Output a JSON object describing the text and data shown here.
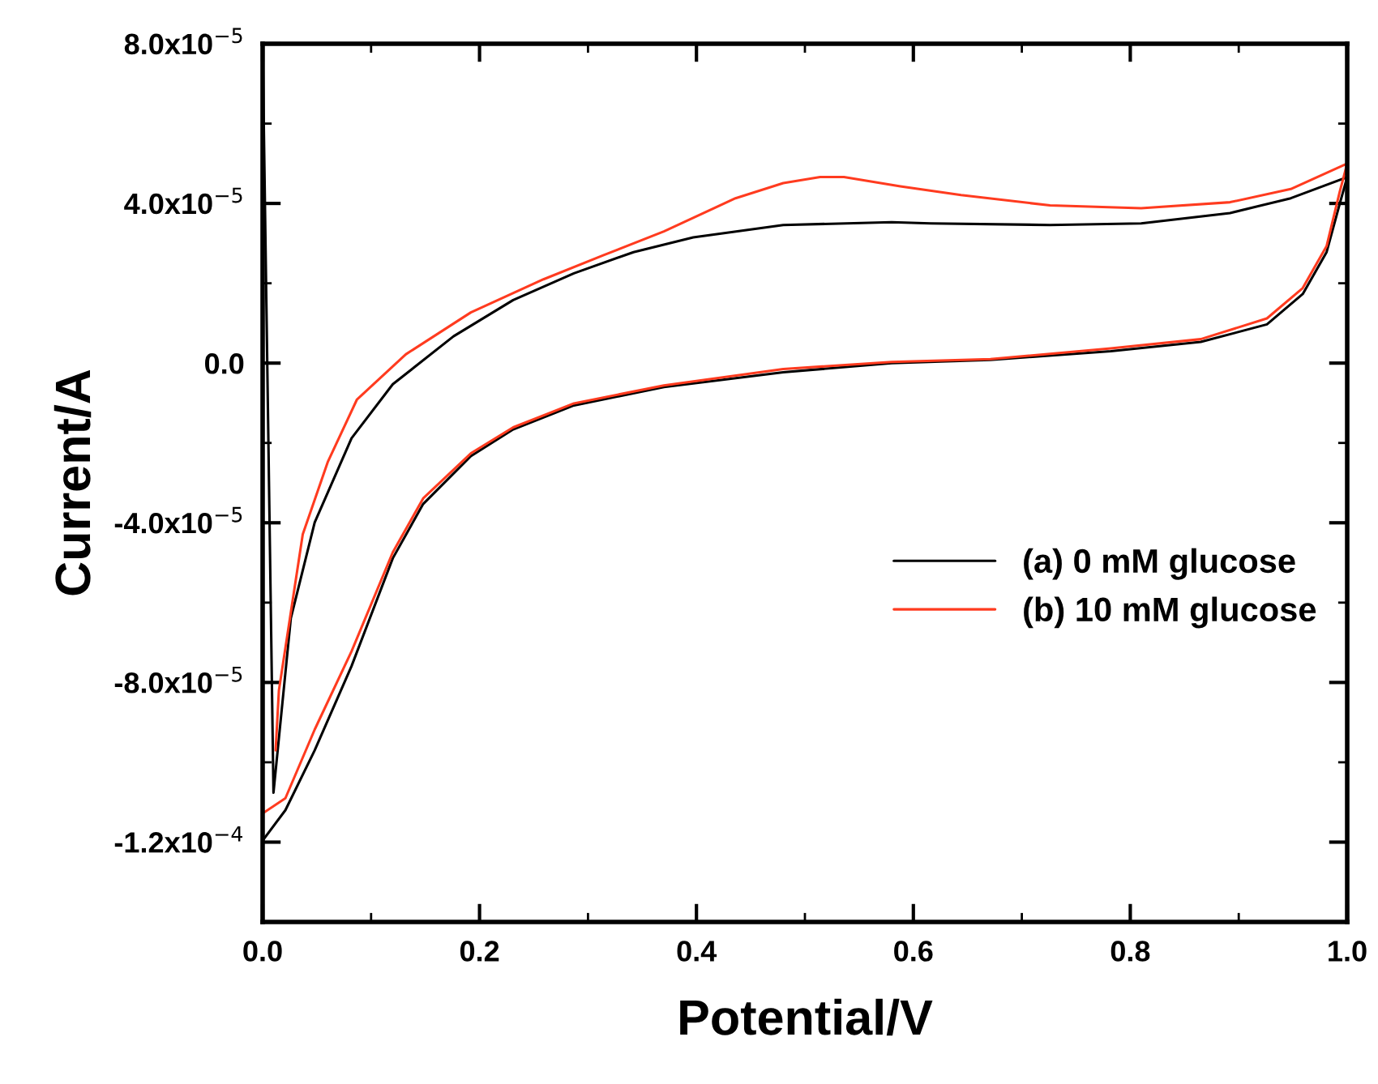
{
  "chart_data": {
    "type": "line",
    "xlabel": "Potential/V",
    "ylabel": "Current/A",
    "legend": "center right",
    "grid": false,
    "line_style": "solid",
    "marker": "none",
    "xlim": [
      0.0,
      1.0
    ],
    "ylim": [
      -0.00014,
      8e-05
    ],
    "xticks": [
      {
        "value": 0.0,
        "label": "0.0"
      },
      {
        "value": 0.2,
        "label": "0.2"
      },
      {
        "value": 0.4,
        "label": "0.4"
      },
      {
        "value": 0.6,
        "label": "0.6"
      },
      {
        "value": 0.8,
        "label": "0.8"
      },
      {
        "value": 1.0,
        "label": "1.0"
      }
    ],
    "yticks": [
      {
        "value": -0.00012,
        "label": "-1.2x10$^{−4}$"
      },
      {
        "value": -8e-05,
        "label": "-8.0x10$^{−5}$"
      },
      {
        "value": -4e-05,
        "label": "-4.0x10$^{−5}$"
      },
      {
        "value": 0,
        "label": "0.0"
      },
      {
        "value": 4e-05,
        "label": "4.0x10$^{−5}$"
      },
      {
        "value": 8e-05,
        "label": "8.0x10$^{−5}$"
      }
    ],
    "series": [
      {
        "name": "(a) 0 mM glucose",
        "color": "#000000",
        "x": [
          0.0,
          0.01,
          0.026,
          0.048,
          0.082,
          0.12,
          0.176,
          0.231,
          0.287,
          0.342,
          0.397,
          0.48,
          0.58,
          0.616,
          0.726,
          0.81,
          0.892,
          0.948,
          1.0,
          0.993,
          0.981,
          0.959,
          0.926,
          0.865,
          0.782,
          0.671,
          0.58,
          0.48,
          0.37,
          0.287,
          0.231,
          0.192,
          0.148,
          0.12,
          0.082,
          0.048,
          0.021,
          0.0
        ],
        "values": [
          8e-05,
          -0.0001076,
          -6.39e-05,
          -3.99e-05,
          -1.88e-05,
          -5.3e-06,
          6.7e-06,
          1.58e-05,
          2.25e-05,
          2.78e-05,
          3.15e-05,
          3.46e-05,
          3.53e-05,
          3.5e-05,
          3.46e-05,
          3.5e-05,
          3.76e-05,
          4.13e-05,
          4.66e-05,
          3.98e-05,
          2.78e-05,
          1.73e-05,
          9.7e-06,
          5.3e-06,
          3e-06,
          8e-07,
          0.0,
          -2.3e-06,
          -6e-06,
          -1.06e-05,
          -1.66e-05,
          -2.33e-05,
          -3.53e-05,
          -4.89e-05,
          -7.59e-05,
          -9.7e-05,
          -0.000112,
          -0.0001196
        ]
      },
      {
        "name": "(b) 10 mM glucose",
        "color": "#ff3b1f",
        "x": [
          0.012,
          0.015,
          0.037,
          0.06,
          0.087,
          0.132,
          0.192,
          0.259,
          0.314,
          0.37,
          0.436,
          0.48,
          0.514,
          0.536,
          0.588,
          0.644,
          0.726,
          0.81,
          0.892,
          0.948,
          1.0,
          0.993,
          0.981,
          0.959,
          0.926,
          0.865,
          0.782,
          0.671,
          0.58,
          0.48,
          0.37,
          0.287,
          0.231,
          0.192,
          0.148,
          0.12,
          0.082,
          0.048,
          0.021,
          0.0
        ],
        "values": [
          -9.7e-05,
          -8.2e-05,
          -4.29e-05,
          -2.48e-05,
          -9.1e-06,
          2.2e-06,
          1.27e-05,
          2.1e-05,
          2.7e-05,
          3.3e-05,
          4.13e-05,
          4.51e-05,
          4.66e-05,
          4.66e-05,
          4.43e-05,
          4.21e-05,
          3.95e-05,
          3.88e-05,
          4.03e-05,
          4.36e-05,
          5e-05,
          4.28e-05,
          2.93e-05,
          1.88e-05,
          1.12e-05,
          6e-06,
          3.7e-06,
          1e-06,
          3e-07,
          -1.5e-06,
          -5.6e-06,
          -1.01e-05,
          -1.61e-05,
          -2.26e-05,
          -3.39e-05,
          -4.74e-05,
          -7.22e-05,
          -9.18e-05,
          -0.000109,
          -0.0001128
        ]
      }
    ]
  }
}
